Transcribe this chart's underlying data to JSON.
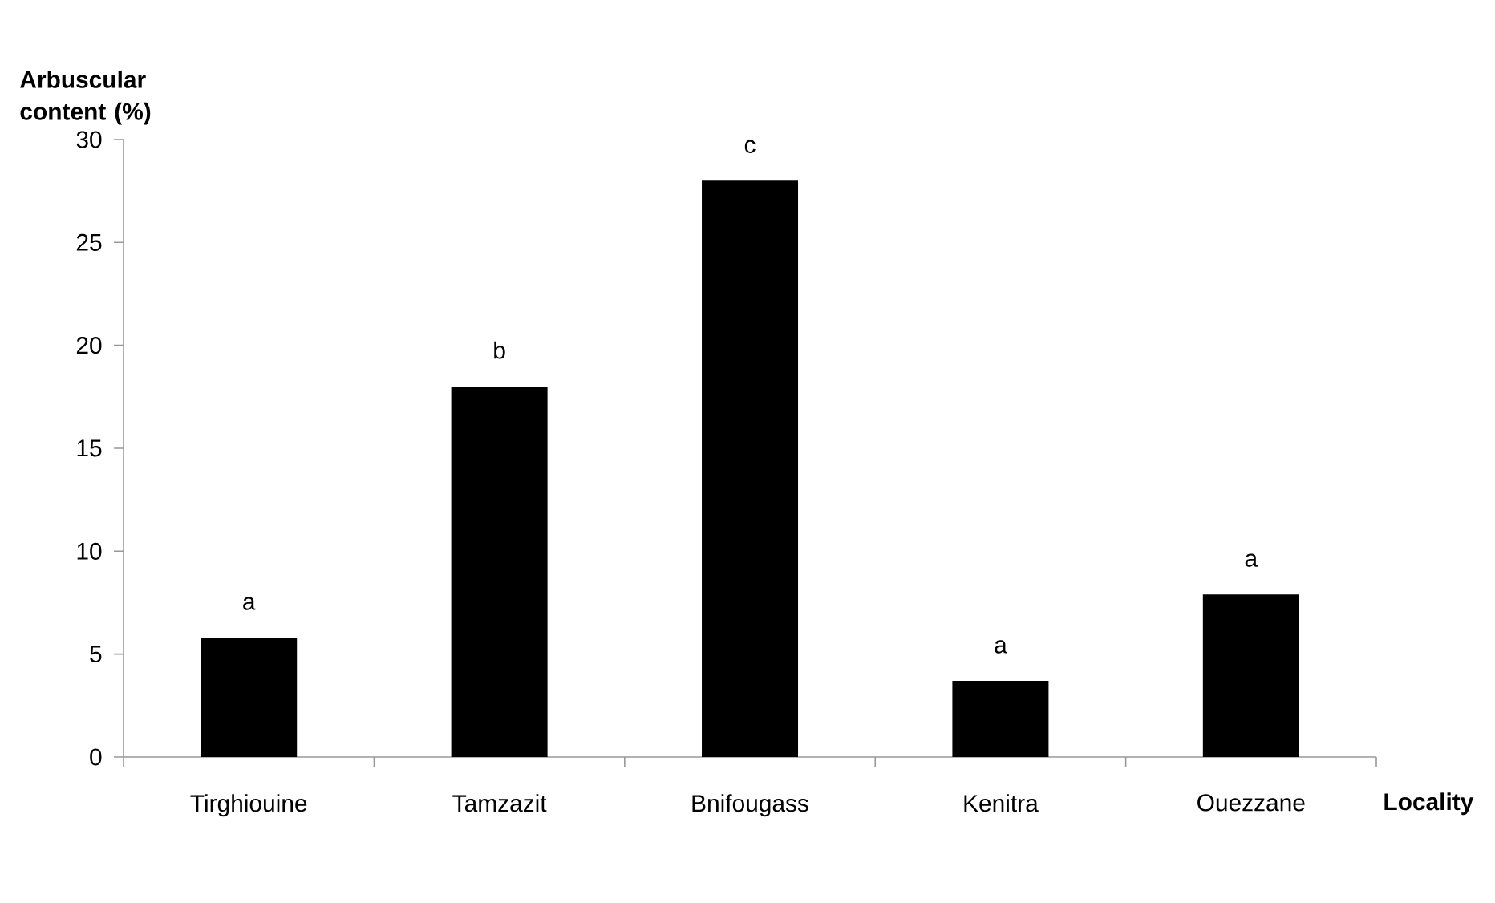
{
  "chart_data": {
    "type": "bar",
    "xlabel": "Locality",
    "ylabel": "Arbuscular content (%)",
    "categories": [
      "Tirghiouine",
      "Tamzazit",
      "Bnifougass",
      "Kenitra",
      "Ouezzane"
    ],
    "values": [
      5.8,
      18,
      28,
      3.7,
      7.9
    ],
    "color": "#000000",
    "ylim": [
      0,
      30
    ],
    "yticks": [
      0,
      5,
      10,
      15,
      20,
      25,
      30
    ],
    "grid": false,
    "annotations": [
      {
        "text": "a",
        "x": "Tirghiouine",
        "y": 5.8
      },
      {
        "text": "b",
        "x": "Tamzazit",
        "y": 18
      },
      {
        "text": "c",
        "x": "Bnifougass",
        "y": 28
      },
      {
        "text": "a",
        "x": "Kenitra",
        "y": 3.7
      },
      {
        "text": "a",
        "x": "Ouezzane",
        "y": 7.9
      }
    ]
  }
}
